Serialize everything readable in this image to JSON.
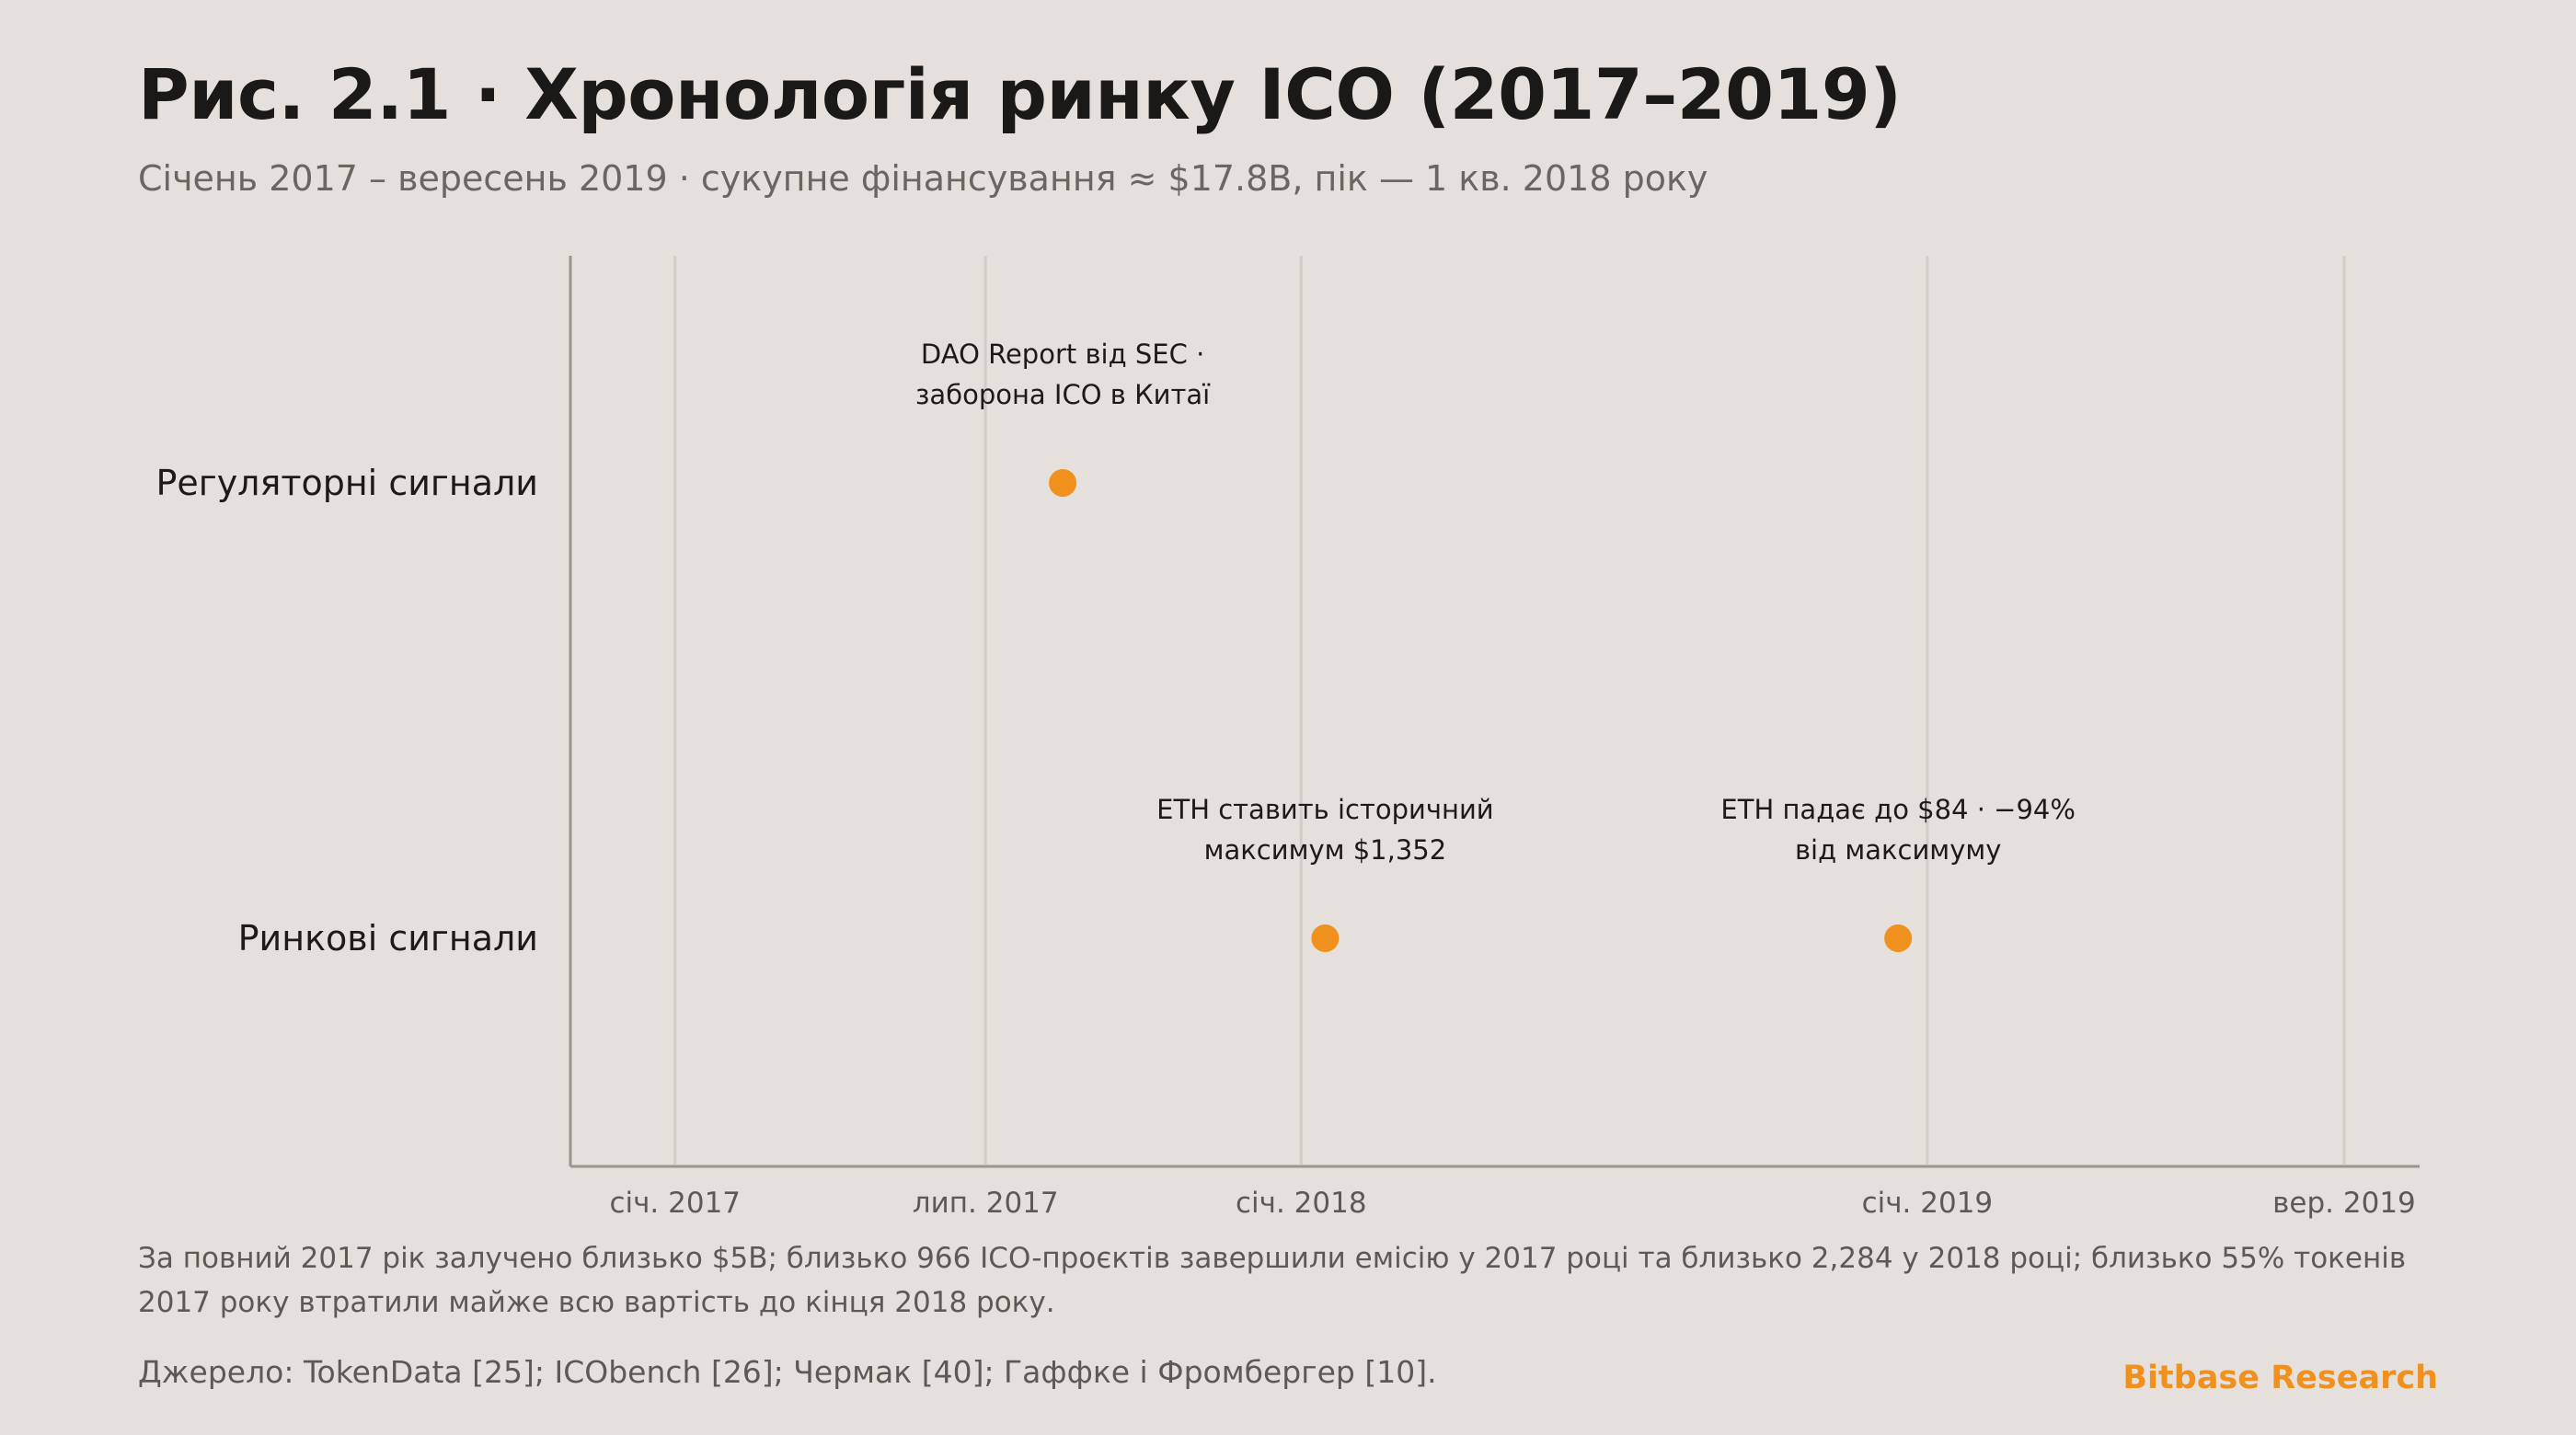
{
  "title": "Рис. 2.1 · Хронологія ринку ICO (2017–2019)",
  "subtitle": "Січень 2017 – вересень 2019 · сукупне фінансування ≈ $17.8B, пік — 1 кв. 2018 року",
  "footnote": "За повний 2017 рік залучено близько $5B; близько 966 ICO-проєктів завершили емісію у 2017 році та близько 2,284 у 2018 році; близько 55% токенів 2017 року втратили майже всю вартість до кінця 2018 року.",
  "source": "Джерело: TokenData [25]; ICObench [26]; Чермак [40]; Гаффке і Фромбергер [10].",
  "brand": "Bitbase Research",
  "colors": {
    "accent": "#f0901d",
    "grid": "#d2cdc7",
    "axis": "#9a958f",
    "background": "#e5e0db"
  },
  "chart_data": {
    "type": "scatter",
    "x_type": "date",
    "x_range": [
      "2016-11-01",
      "2019-10-15"
    ],
    "x_ticks": [
      {
        "date": "2017-01-01",
        "label": "січ. 2017"
      },
      {
        "date": "2017-07-01",
        "label": "лип. 2017"
      },
      {
        "date": "2018-01-01",
        "label": "січ. 2018"
      },
      {
        "date": "2019-01-01",
        "label": "січ. 2019"
      },
      {
        "date": "2019-09-01",
        "label": "вер. 2019"
      }
    ],
    "rows": [
      "Регуляторні сигнали",
      "Ринкові сигнали"
    ],
    "grid": true,
    "events": [
      {
        "row": 0,
        "date": "2017-08-15",
        "label": [
          "DAO Report від SEC ·",
          "заборона ICO в Китаї"
        ]
      },
      {
        "row": 1,
        "date": "2018-01-15",
        "label": [
          "ETH ставить історичний",
          "максимум $1,352"
        ]
      },
      {
        "row": 1,
        "date": "2018-12-15",
        "label": [
          "ETH падає до $84 · −94%",
          "від максимуму"
        ]
      }
    ]
  }
}
